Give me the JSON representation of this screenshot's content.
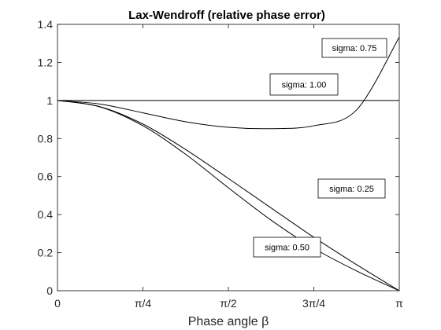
{
  "chart_data": {
    "type": "line",
    "title": "Lax-Wendroff (relative phase error)",
    "xlabel": "Phase angle β",
    "ylabel": "",
    "xlim": [
      0,
      3.14159
    ],
    "ylim": [
      0,
      1.4
    ],
    "grid": false,
    "x_ticks": [
      {
        "value": 0,
        "label": "0"
      },
      {
        "value": 0.7854,
        "label": "π/4"
      },
      {
        "value": 1.5708,
        "label": "π/2"
      },
      {
        "value": 2.3562,
        "label": "3π/4"
      },
      {
        "value": 3.14159,
        "label": "π"
      }
    ],
    "y_ticks": [
      {
        "value": 0,
        "label": "0"
      },
      {
        "value": 0.2,
        "label": "0.2"
      },
      {
        "value": 0.4,
        "label": "0.4"
      },
      {
        "value": 0.6,
        "label": "0.6"
      },
      {
        "value": 0.8,
        "label": "0.8"
      },
      {
        "value": 1,
        "label": "1"
      },
      {
        "value": 1.2,
        "label": "1.2"
      },
      {
        "value": 1.4,
        "label": "1.4"
      }
    ],
    "series": [
      {
        "sigma": 0.25,
        "x": [
          0,
          0.3927,
          0.7854,
          1.1781,
          1.5708,
          1.9635,
          2.3562,
          2.7489,
          3.14159
        ],
        "y": [
          1.0,
          0.966,
          0.867,
          0.717,
          0.541,
          0.371,
          0.223,
          0.104,
          0.0
        ]
      },
      {
        "sigma": 0.5,
        "x": [
          0,
          0.3927,
          0.7854,
          1.1781,
          1.5708,
          1.9635,
          2.3562,
          2.7489,
          3.14159
        ],
        "y": [
          1.0,
          0.967,
          0.876,
          0.742,
          0.59,
          0.435,
          0.281,
          0.137,
          0.0
        ]
      },
      {
        "sigma": 0.75,
        "x": [
          0,
          0.3927,
          0.7854,
          1.1781,
          1.5708,
          1.9635,
          2.3562,
          2.7489,
          3.14159
        ],
        "y": [
          1.0,
          0.981,
          0.935,
          0.888,
          0.859,
          0.852,
          0.867,
          0.95,
          1.333
        ]
      },
      {
        "sigma": 1.0,
        "x": [
          0,
          3.14159
        ],
        "y": [
          1.0,
          1.0
        ]
      }
    ],
    "annotations": [
      {
        "text": "sigma: 0.75"
      },
      {
        "text": "sigma: 1.00"
      },
      {
        "text": "sigma: 0.25"
      },
      {
        "text": "sigma: 0.50"
      }
    ]
  }
}
